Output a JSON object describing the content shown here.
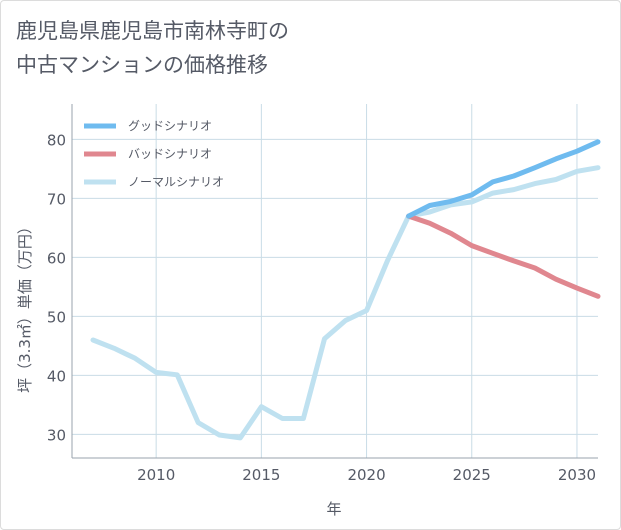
{
  "title_lines": [
    "鹿児島県鹿児島市南林寺町の",
    "中古マンションの価格推移"
  ],
  "chart_data": {
    "type": "line",
    "xlabel": "年",
    "ylabel": "坪（3.3㎡）単価（万円）",
    "xlim": [
      2006,
      2031
    ],
    "ylim": [
      26,
      86
    ],
    "x_ticks": [
      2010,
      2015,
      2020,
      2025,
      2030
    ],
    "y_ticks": [
      30,
      40,
      50,
      60,
      70,
      80
    ],
    "grid": true,
    "legend_position": "top-left",
    "series": [
      {
        "name": "グッドシナリオ",
        "color": "#6fbbef",
        "points": [
          [
            2022,
            67.0
          ],
          [
            2023,
            68.8
          ],
          [
            2024,
            69.5
          ],
          [
            2025,
            70.6
          ],
          [
            2026,
            72.8
          ],
          [
            2027,
            73.8
          ],
          [
            2028,
            75.2
          ],
          [
            2029,
            76.7
          ],
          [
            2030,
            78.0
          ],
          [
            2031,
            79.6
          ]
        ]
      },
      {
        "name": "バッドシナリオ",
        "color": "#e0878f",
        "points": [
          [
            2022,
            67.0
          ],
          [
            2023,
            65.8
          ],
          [
            2024,
            64.1
          ],
          [
            2025,
            62.0
          ],
          [
            2026,
            60.7
          ],
          [
            2027,
            59.4
          ],
          [
            2028,
            58.2
          ],
          [
            2029,
            56.3
          ],
          [
            2030,
            54.8
          ],
          [
            2031,
            53.4
          ]
        ]
      },
      {
        "name": "ノーマルシナリオ",
        "color": "#bfe1f0",
        "points": [
          [
            2007,
            46.0
          ],
          [
            2008,
            44.6
          ],
          [
            2009,
            42.9
          ],
          [
            2010,
            40.5
          ],
          [
            2011,
            40.1
          ],
          [
            2012,
            32.0
          ],
          [
            2013,
            29.9
          ],
          [
            2014,
            29.4
          ],
          [
            2015,
            34.7
          ],
          [
            2016,
            32.7
          ],
          [
            2017,
            32.7
          ],
          [
            2018,
            46.2
          ],
          [
            2019,
            49.3
          ],
          [
            2020,
            51.0
          ],
          [
            2021,
            59.5
          ],
          [
            2022,
            67.0
          ],
          [
            2023,
            67.7
          ],
          [
            2024,
            68.9
          ],
          [
            2025,
            69.4
          ],
          [
            2026,
            70.9
          ],
          [
            2027,
            71.5
          ],
          [
            2028,
            72.5
          ],
          [
            2029,
            73.2
          ],
          [
            2030,
            74.6
          ],
          [
            2031,
            75.2
          ]
        ]
      }
    ]
  }
}
